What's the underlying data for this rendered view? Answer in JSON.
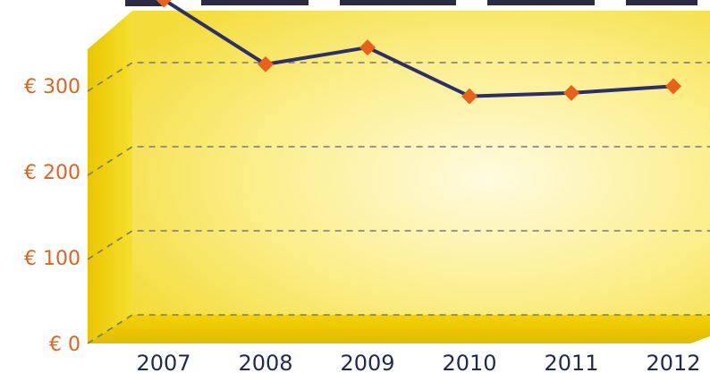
{
  "chart_data": {
    "type": "line",
    "categories": [
      "2007",
      "2008",
      "2009",
      "2010",
      "2011",
      "2012"
    ],
    "values": [
      375,
      298,
      318,
      260,
      264,
      272
    ],
    "y_ticks": [
      {
        "value": 0,
        "label": "€ 0"
      },
      {
        "value": 100,
        "label": "€ 100"
      },
      {
        "value": 200,
        "label": "€ 200"
      },
      {
        "value": 300,
        "label": "€ 300"
      }
    ],
    "ylim": [
      0,
      400
    ],
    "grid": true,
    "colors": {
      "line": "#2b2f6b",
      "marker": "#e8621c",
      "tick_label": "#e0641e",
      "category_label": "#1f2a52",
      "floor": "#ebc700",
      "panel": "#f7e45a",
      "panel_glow": "#fffbe0",
      "grid": "#777777"
    }
  }
}
